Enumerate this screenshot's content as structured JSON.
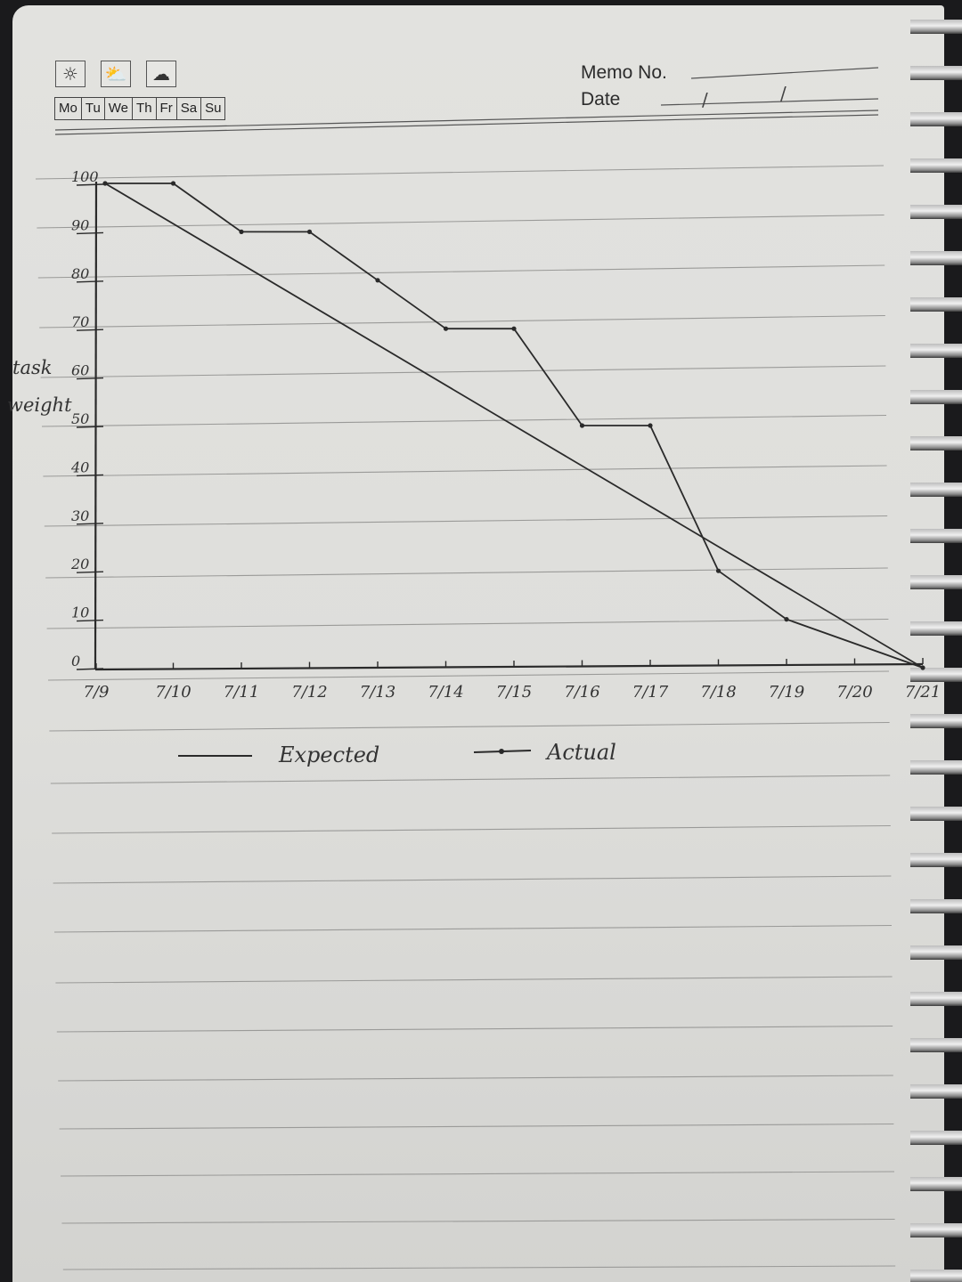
{
  "header": {
    "weather_icons": [
      "sun-icon",
      "partly-cloudy-icon",
      "rain-cloud-icon"
    ],
    "days": [
      "Mo",
      "Tu",
      "We",
      "Th",
      "Fr",
      "Sa",
      "Su"
    ],
    "memo_label": "Memo No.",
    "date_label": "Date",
    "date_slash_1": "/",
    "date_slash_2": "/"
  },
  "chart_data": {
    "type": "line",
    "title": "",
    "xlabel": "",
    "ylabel": "task weight",
    "ylabel_line1": "task",
    "ylabel_line2": "weight",
    "x": [
      "7/9",
      "7/10",
      "7/11",
      "7/12",
      "7/13",
      "7/14",
      "7/15",
      "7/16",
      "7/17",
      "7/18",
      "7/19",
      "7/20",
      "7/21"
    ],
    "yticks": [
      0,
      10,
      20,
      30,
      40,
      50,
      60,
      70,
      80,
      90,
      100
    ],
    "ylim": [
      0,
      100
    ],
    "grid": false,
    "legend_position": "bottom",
    "series": [
      {
        "name": "Expected",
        "marker": false,
        "points": [
          {
            "x": "7/9",
            "y": 100
          },
          {
            "x": "7/21",
            "y": 0
          }
        ]
      },
      {
        "name": "Actual",
        "marker": true,
        "points": [
          {
            "x": "7/9",
            "y": 100
          },
          {
            "x": "7/10",
            "y": 100
          },
          {
            "x": "7/11",
            "y": 90
          },
          {
            "x": "7/12",
            "y": 90
          },
          {
            "x": "7/13",
            "y": 80
          },
          {
            "x": "7/14",
            "y": 70
          },
          {
            "x": "7/15",
            "y": 70
          },
          {
            "x": "7/16",
            "y": 50
          },
          {
            "x": "7/17",
            "y": 50
          },
          {
            "x": "7/18",
            "y": 20
          },
          {
            "x": "7/19",
            "y": 10
          },
          {
            "x": "7/21",
            "y": 0
          }
        ]
      }
    ]
  },
  "colors": {
    "ink": "#2a2a2a",
    "paper": "#e0e0dd",
    "rule": "#9a9a98"
  }
}
